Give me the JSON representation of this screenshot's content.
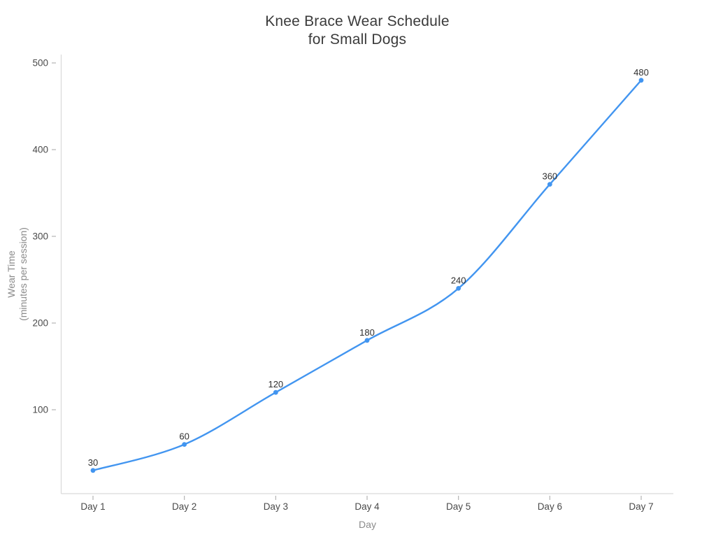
{
  "chart": {
    "title_line1": "Knee Brace Wear Schedule",
    "title_line2": "for Small Dogs",
    "xlabel": "Day",
    "ylabel_line1": "Wear Time",
    "ylabel_line2": "(minutes per session)"
  },
  "chart_data": {
    "type": "line",
    "title": "Knee Brace Wear Schedule for Small Dogs",
    "xlabel": "Day",
    "ylabel": "Wear Time (minutes per session)",
    "categories": [
      "Day 1",
      "Day 2",
      "Day 3",
      "Day 4",
      "Day 5",
      "Day 6",
      "Day 7"
    ],
    "values": [
      30,
      60,
      120,
      180,
      240,
      360,
      480
    ],
    "point_labels": [
      "30",
      "60",
      "120",
      "180",
      "240",
      "360",
      "480"
    ],
    "yticks": [
      100,
      200,
      300,
      400,
      500
    ],
    "ylim": [
      0,
      515
    ],
    "line_shape": "spline",
    "grid": false,
    "legend_position": "none",
    "line_color": "#4295f0",
    "marker_color": "#4295f0",
    "axis_line_color": "#d9d9d9",
    "tick_mark_color": "#b3b3b3",
    "tick_label_color": "#4a4a4a",
    "point_label_color": "#2e2e2e",
    "title_color": "#3b3b3b",
    "axis_title_color": "#8b8b8b"
  }
}
